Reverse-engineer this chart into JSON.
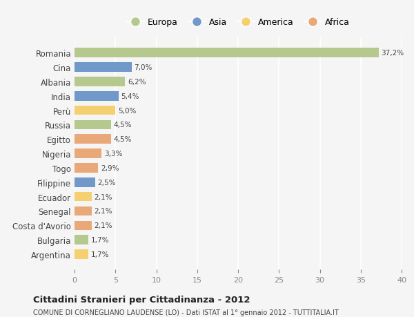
{
  "countries": [
    "Romania",
    "Cina",
    "Albania",
    "India",
    "Perù",
    "Russia",
    "Egitto",
    "Nigeria",
    "Togo",
    "Filippine",
    "Ecuador",
    "Senegal",
    "Costa d'Avorio",
    "Bulgaria",
    "Argentina"
  ],
  "values": [
    37.2,
    7.0,
    6.2,
    5.4,
    5.0,
    4.5,
    4.5,
    3.3,
    2.9,
    2.5,
    2.1,
    2.1,
    2.1,
    1.7,
    1.7
  ],
  "continents": [
    "Europa",
    "Asia",
    "Europa",
    "Asia",
    "America",
    "Europa",
    "Africa",
    "Africa",
    "Africa",
    "Asia",
    "America",
    "Africa",
    "Africa",
    "Europa",
    "America"
  ],
  "colors": {
    "Europa": "#b5c98e",
    "Asia": "#7098c8",
    "America": "#f5d070",
    "Africa": "#e8a878"
  },
  "legend_order": [
    "Europa",
    "Asia",
    "America",
    "Africa"
  ],
  "title": "Cittadini Stranieri per Cittadinanza - 2012",
  "subtitle": "COMUNE DI CORNEGLIANO LAUDENSE (LO) - Dati ISTAT al 1° gennaio 2012 - TUTTITALIA.IT",
  "xlim": [
    0,
    40
  ],
  "xticks": [
    0,
    5,
    10,
    15,
    20,
    25,
    30,
    35,
    40
  ],
  "background_color": "#f5f5f5",
  "grid_color": "#ffffff"
}
